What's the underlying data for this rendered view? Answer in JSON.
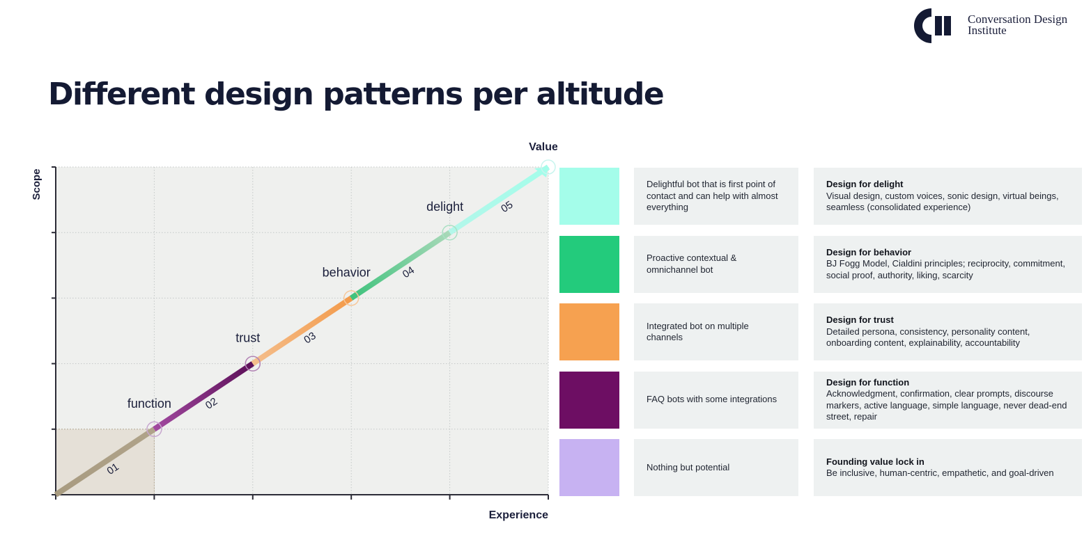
{
  "brand": {
    "name": "Conversation Design Institute",
    "logo_icon": "cdi-logo-icon"
  },
  "title": "Different design patterns per altitude",
  "colors": {
    "level_01": "#a89b80",
    "level_02": "#6d0e63",
    "level_03": "#f6a150",
    "level_04": "#23cb7c",
    "level_05": "#a4fdea",
    "foundation": "#c7b2f2"
  },
  "chart_data": {
    "type": "line",
    "xlabel": "Experience",
    "ylabel": "Scope",
    "end_label": "Value",
    "x": [
      0,
      1,
      2,
      3,
      4,
      5
    ],
    "y": [
      0,
      1,
      2,
      3,
      4,
      5
    ],
    "xlim": [
      0,
      5
    ],
    "ylim": [
      0,
      5
    ],
    "grid": true,
    "milestones": [
      {
        "label": "function",
        "x": 1,
        "y": 1
      },
      {
        "label": "trust",
        "x": 2,
        "y": 2
      },
      {
        "label": "behavior",
        "x": 3,
        "y": 3
      },
      {
        "label": "delight",
        "x": 4,
        "y": 4
      }
    ],
    "segments": [
      {
        "name": "01",
        "from": 0,
        "to": 1
      },
      {
        "name": "02",
        "from": 1,
        "to": 2
      },
      {
        "name": "03",
        "from": 2,
        "to": 3
      },
      {
        "name": "04",
        "from": 3,
        "to": 4
      },
      {
        "name": "05",
        "from": 4,
        "to": 5
      }
    ]
  },
  "levels": [
    {
      "description": "Delightful bot that is first point of contact and can help with almost everything",
      "pattern_title": "Design for delight",
      "pattern_text": "Visual design, custom voices, sonic design, virtual beings, seamless (consolidated experience)"
    },
    {
      "description": "Proactive contextual & omnichannel bot",
      "pattern_title": "Design for behavior",
      "pattern_text": "BJ Fogg Model, Cialdini principles; reciprocity, commitment, social proof, authority, liking, scarcity"
    },
    {
      "description": "Integrated bot on multiple channels",
      "pattern_title": "Design for trust",
      "pattern_text": "Detailed persona, consistency, personality content, onboarding content, explainability, accountability"
    },
    {
      "description": "FAQ bots with some integrations",
      "pattern_title": "Design for function",
      "pattern_text": "Acknowledgment, confirmation, clear prompts, discourse markers, active language, simple language, never dead-end street, repair"
    },
    {
      "description": "Nothing but potential",
      "pattern_title": "Founding value lock in",
      "pattern_text": "Be inclusive, human-centric, empathetic, and goal-driven"
    }
  ]
}
